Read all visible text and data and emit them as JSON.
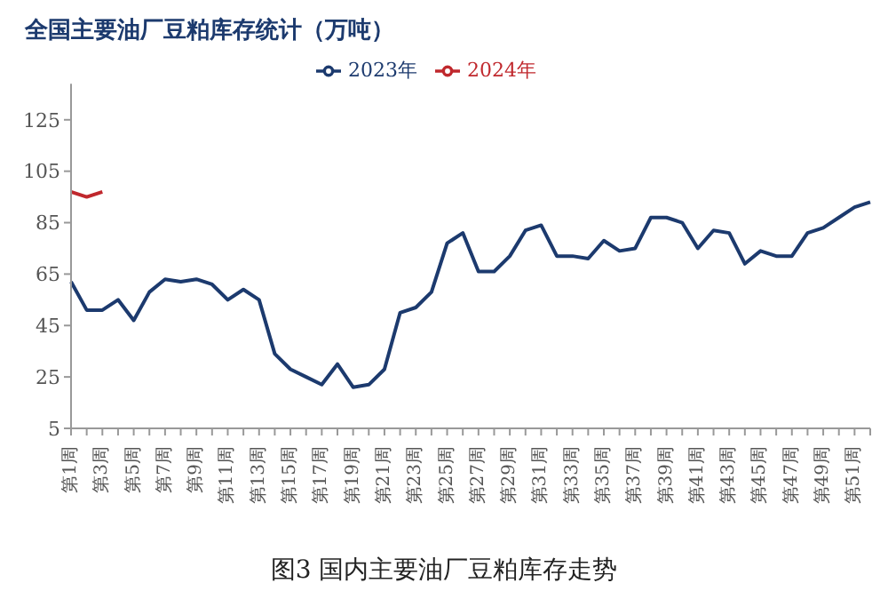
{
  "chart_data": {
    "type": "line",
    "title": "全国主要油厂豆粕库存统计（万吨）",
    "categories": [
      "第1周",
      null,
      "第3周",
      null,
      "第5周",
      null,
      "第7周",
      null,
      "第9周",
      null,
      "第11周",
      null,
      "第13周",
      null,
      "第15周",
      null,
      "第17周",
      null,
      "第19周",
      null,
      "第21周",
      null,
      "第23周",
      null,
      "第25周",
      null,
      "第27周",
      null,
      "第29周",
      null,
      "第31周",
      null,
      "第33周",
      null,
      "第35周",
      null,
      "第37周",
      null,
      "第39周",
      null,
      "第41周",
      null,
      "第43周",
      null,
      "第45周",
      null,
      "第47周",
      null,
      "第49周",
      null,
      "第51周",
      null
    ],
    "series": [
      {
        "name": "2023年",
        "color": "#1c3a6e",
        "values": [
          62,
          51,
          51,
          55,
          47,
          58,
          63,
          62,
          63,
          61,
          55,
          59,
          55,
          34,
          28,
          25,
          22,
          30,
          21,
          22,
          28,
          50,
          52,
          58,
          77,
          81,
          66,
          66,
          72,
          82,
          84,
          72,
          72,
          71,
          78,
          74,
          75,
          87,
          87,
          85,
          75,
          82,
          81,
          69,
          74,
          72,
          72,
          81,
          83,
          87,
          91,
          93
        ]
      },
      {
        "name": "2024年",
        "color": "#c0282d",
        "values": [
          97,
          95,
          97,
          null,
          null,
          null,
          null,
          null,
          null,
          null,
          null,
          null,
          null,
          null,
          null,
          null,
          null,
          null,
          null,
          null,
          null,
          null,
          null,
          null,
          null,
          null,
          null,
          null,
          null,
          null,
          null,
          null,
          null,
          null,
          null,
          null,
          null,
          null,
          null,
          null,
          null,
          null,
          null,
          null,
          null,
          null,
          null,
          null,
          null,
          null,
          null,
          null
        ]
      }
    ],
    "ylim": [
      5,
      139
    ],
    "yticks": [
      5,
      25,
      45,
      65,
      85,
      105,
      125
    ],
    "grid": false,
    "legend": "top",
    "marker": "none",
    "line_style": "solid",
    "annotations": [
      "图3 国内主要油厂豆粕库存走势"
    ]
  }
}
